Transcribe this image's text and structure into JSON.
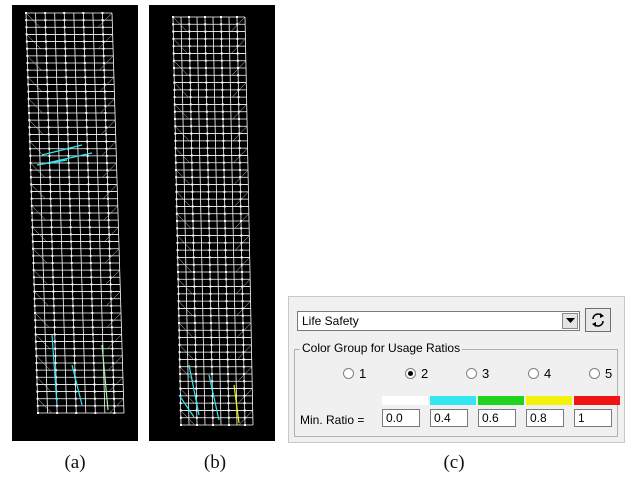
{
  "captions": {
    "a": "(a)",
    "b": "(b)",
    "c": "(c)"
  },
  "panel": {
    "dropdown_value": "Life Safety",
    "group_title": "Color Group for Usage Ratios",
    "radios": [
      {
        "label": "1",
        "selected": false
      },
      {
        "label": "2",
        "selected": true
      },
      {
        "label": "3",
        "selected": false
      },
      {
        "label": "4",
        "selected": false
      },
      {
        "label": "5",
        "selected": false
      }
    ],
    "swatch_colors": [
      "#ffffff",
      "#33e6f0",
      "#1fd31f",
      "#f2f20a",
      "#f01414"
    ],
    "min_ratio_label": "Min. Ratio =",
    "ratios": [
      "0.0",
      "0.4",
      "0.6",
      "0.8",
      "1"
    ]
  },
  "icons": {
    "dropdown": "chevron-down-icon",
    "refresh": "refresh-icon"
  }
}
